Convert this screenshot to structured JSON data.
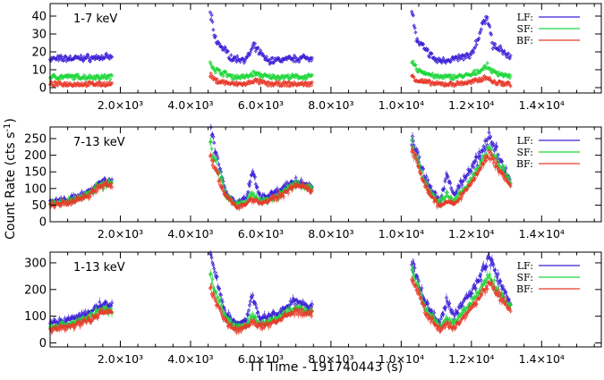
{
  "figure": {
    "y_axis_title": "Count Rate (cts s",
    "y_axis_title_sup": "-1",
    "y_axis_title_end": ")",
    "x_axis_title": "TT Time - 191740443 (s)"
  },
  "chart_data": [
    {
      "type": "scatter",
      "title": "1-7 keV",
      "xlim": [
        0,
        15700
      ],
      "ylim": [
        -3,
        47
      ],
      "yticks": [
        0,
        10,
        20,
        30,
        40
      ],
      "xticks": [
        2000,
        4000,
        6000,
        8000,
        10000,
        12000,
        14000
      ],
      "xticklabels": [
        "2.0×10³",
        "4.0×10³",
        "6.0×10³",
        "8.0×10³",
        "1.0×10⁴",
        "1.2×10⁴",
        "1.4×10⁴"
      ],
      "legend": [
        "LF:",
        "SF:",
        "BF:"
      ],
      "colors": {
        "LF": "#3a1fd6",
        "SF": "#1fd63a",
        "BF": "#e83a2a"
      },
      "segments": [
        [
          0,
          1780
        ],
        [
          4560,
          7470
        ],
        [
          10300,
          13120
        ]
      ],
      "series": [
        {
          "name": "LF",
          "x": [
            0,
            1780,
            4560,
            4700,
            5200,
            5600,
            5800,
            6200,
            7470,
            10300,
            10450,
            11000,
            11500,
            12000,
            12450,
            12600,
            13120
          ],
          "y": [
            16,
            17,
            42,
            27,
            16,
            16,
            23,
            15,
            17,
            44,
            26,
            15,
            16,
            18,
            41,
            24,
            17
          ]
        },
        {
          "name": "SF",
          "x": [
            0,
            1780,
            4560,
            4700,
            5200,
            5600,
            5800,
            6200,
            7470,
            10300,
            10450,
            11000,
            11500,
            12000,
            12450,
            12600,
            13120
          ],
          "y": [
            6,
            6,
            14,
            10,
            6,
            6,
            8,
            6,
            6,
            15,
            10,
            6,
            6,
            7,
            12,
            9,
            6
          ]
        },
        {
          "name": "BF",
          "x": [
            0,
            1780,
            4560,
            4700,
            5200,
            5600,
            5800,
            6200,
            7470,
            10300,
            10450,
            11000,
            11500,
            12000,
            12450,
            12600,
            13120
          ],
          "y": [
            2,
            2,
            7,
            4,
            2,
            2,
            4,
            2,
            2,
            7,
            4,
            2,
            2,
            3,
            6,
            3,
            2
          ]
        }
      ]
    },
    {
      "type": "scatter",
      "title": "7-13 keV",
      "xlim": [
        0,
        15700
      ],
      "ylim": [
        0,
        285
      ],
      "yticks": [
        0,
        50,
        100,
        150,
        200,
        250
      ],
      "xticks": [
        2000,
        4000,
        6000,
        8000,
        10000,
        12000,
        14000
      ],
      "xticklabels": [
        "2.0×10³",
        "4.0×10³",
        "6.0×10³",
        "8.0×10³",
        "1.0×10⁴",
        "1.2×10⁴",
        "1.4×10⁴"
      ],
      "legend": [
        "LF:",
        "SF:",
        "BF:"
      ],
      "colors": {
        "LF": "#3a1fd6",
        "SF": "#1fd63a",
        "BF": "#e83a2a"
      },
      "segments": [
        [
          0,
          1780
        ],
        [
          4560,
          7470
        ],
        [
          10300,
          13120
        ]
      ],
      "series": [
        {
          "name": "LF",
          "x": [
            0,
            500,
            1000,
            1500,
            1780,
            4560,
            5000,
            5300,
            5600,
            5750,
            6000,
            6500,
            7000,
            7470,
            10300,
            10700,
            11100,
            11300,
            11500,
            11800,
            12200,
            12500,
            12800,
            13120
          ],
          "y": [
            60,
            65,
            85,
            125,
            120,
            285,
            90,
            55,
            70,
            150,
            70,
            90,
            125,
            105,
            250,
            130,
            60,
            140,
            80,
            130,
            190,
            260,
            190,
            120
          ]
        },
        {
          "name": "SF",
          "x": [
            0,
            500,
            1000,
            1500,
            1780,
            4560,
            5000,
            5300,
            5600,
            5750,
            6000,
            6500,
            7000,
            7470,
            10300,
            10700,
            11100,
            11300,
            11500,
            11800,
            12200,
            12500,
            12800,
            13120
          ],
          "y": [
            55,
            60,
            80,
            115,
            115,
            230,
            85,
            50,
            60,
            85,
            60,
            80,
            115,
            100,
            235,
            110,
            55,
            80,
            60,
            100,
            160,
            220,
            170,
            115
          ]
        },
        {
          "name": "BF",
          "x": [
            0,
            500,
            1000,
            1500,
            1780,
            4560,
            5000,
            5300,
            5600,
            5750,
            6000,
            6500,
            7000,
            7470,
            10300,
            10700,
            11100,
            11300,
            11500,
            11800,
            12200,
            12500,
            12800,
            13120
          ],
          "y": [
            50,
            55,
            75,
            110,
            110,
            200,
            75,
            45,
            55,
            70,
            55,
            75,
            110,
            95,
            230,
            100,
            45,
            60,
            50,
            90,
            150,
            205,
            160,
            110
          ]
        }
      ]
    },
    {
      "type": "scatter",
      "title": "1-13 keV",
      "xlim": [
        0,
        15700
      ],
      "ylim": [
        -15,
        340
      ],
      "yticks": [
        0,
        100,
        200,
        300
      ],
      "xticks": [
        2000,
        4000,
        6000,
        8000,
        10000,
        12000,
        14000
      ],
      "xticklabels": [
        "2.0×10³",
        "4.0×10³",
        "6.0×10³",
        "8.0×10³",
        "1.0×10⁴",
        "1.2×10⁴",
        "1.4×10⁴"
      ],
      "legend": [
        "LF:",
        "SF:",
        "BF:"
      ],
      "colors": {
        "LF": "#3a1fd6",
        "SF": "#1fd63a",
        "BF": "#e83a2a"
      },
      "segments": [
        [
          0,
          1780
        ],
        [
          4560,
          7470
        ],
        [
          10300,
          13120
        ]
      ],
      "series": [
        {
          "name": "LF",
          "x": [
            0,
            500,
            1000,
            1500,
            1780,
            4560,
            5000,
            5300,
            5600,
            5750,
            6000,
            6500,
            7000,
            7470,
            10300,
            10700,
            11100,
            11300,
            11500,
            11800,
            12200,
            12500,
            12800,
            13120
          ],
          "y": [
            75,
            85,
            105,
            145,
            140,
            330,
            110,
            70,
            90,
            175,
            90,
            110,
            160,
            130,
            300,
            150,
            70,
            160,
            100,
            160,
            230,
            320,
            230,
            150
          ]
        },
        {
          "name": "SF",
          "x": [
            0,
            500,
            1000,
            1500,
            1780,
            4560,
            5000,
            5300,
            5600,
            5750,
            6000,
            6500,
            7000,
            7470,
            10300,
            10700,
            11100,
            11300,
            11500,
            11800,
            12200,
            12500,
            12800,
            13120
          ],
          "y": [
            60,
            70,
            90,
            125,
            125,
            250,
            95,
            55,
            70,
            100,
            70,
            95,
            130,
            115,
            265,
            125,
            60,
            90,
            70,
            120,
            185,
            250,
            190,
            130
          ]
        },
        {
          "name": "BF",
          "x": [
            0,
            500,
            1000,
            1500,
            1780,
            4560,
            5000,
            5300,
            5600,
            5750,
            6000,
            6500,
            7000,
            7470,
            10300,
            10700,
            11100,
            11300,
            11500,
            11800,
            12200,
            12500,
            12800,
            13120
          ],
          "y": [
            50,
            60,
            80,
            115,
            115,
            205,
            80,
            45,
            60,
            80,
            60,
            85,
            120,
            105,
            250,
            110,
            50,
            70,
            55,
            100,
            165,
            225,
            175,
            120
          ]
        }
      ]
    }
  ]
}
